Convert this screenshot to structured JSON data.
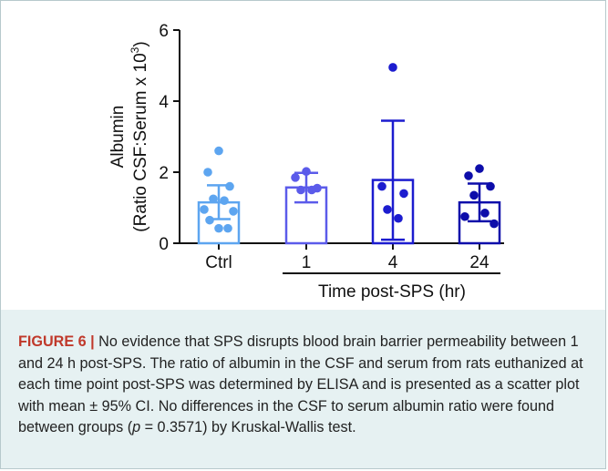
{
  "chart_data": {
    "type": "bar",
    "categories": [
      "Ctrl",
      "1",
      "4",
      "24"
    ],
    "ylabel_line1": "Albumin",
    "ylabel_line2": "(Ratio CSF:Serum x 10",
    "ylabel_superscript": "3",
    "ylabel_close": ")",
    "xlabel": "Time post-SPS (hr)",
    "ylim": [
      0,
      6
    ],
    "yticks": [
      0,
      2,
      4,
      6
    ],
    "grid": false,
    "error_bar": "mean ± 95% CI",
    "series": [
      {
        "category": "Ctrl",
        "mean": 1.15,
        "ci_low": 0.68,
        "ci_high": 1.63,
        "color": "#5da5f0",
        "points": [
          2.6,
          2.0,
          1.6,
          1.25,
          1.2,
          0.95,
          0.9,
          0.65,
          0.42,
          0.42
        ]
      },
      {
        "category": "1",
        "mean": 1.57,
        "ci_low": 1.15,
        "ci_high": 1.98,
        "color": "#5b5bea",
        "points": [
          2.02,
          1.85,
          1.55,
          1.5,
          1.5
        ]
      },
      {
        "category": "4",
        "mean": 1.78,
        "ci_low": 0.1,
        "ci_high": 3.45,
        "color": "#1c1ccf",
        "points": [
          4.95,
          1.6,
          1.4,
          0.95,
          0.7
        ]
      },
      {
        "category": "24",
        "mean": 1.15,
        "ci_low": 0.62,
        "ci_high": 1.68,
        "color": "#0d0daa",
        "points": [
          2.1,
          1.9,
          1.6,
          1.35,
          0.85,
          0.75,
          0.55
        ]
      }
    ]
  },
  "caption": {
    "label": "FIGURE 6 |",
    "text_before_p": " No evidence that SPS disrupts blood brain barrier permeability between 1 and 24 h post-SPS. The ratio of albumin in the CSF and serum from rats euthanized at each time point post-SPS was determined by ELISA and is presented as a scatter plot with mean ± 95% CI. No differences in the CSF to serum albumin ratio were found between groups (",
    "p_symbol": "p",
    "text_after_p": " = 0.3571) by Kruskal-Wallis test."
  }
}
